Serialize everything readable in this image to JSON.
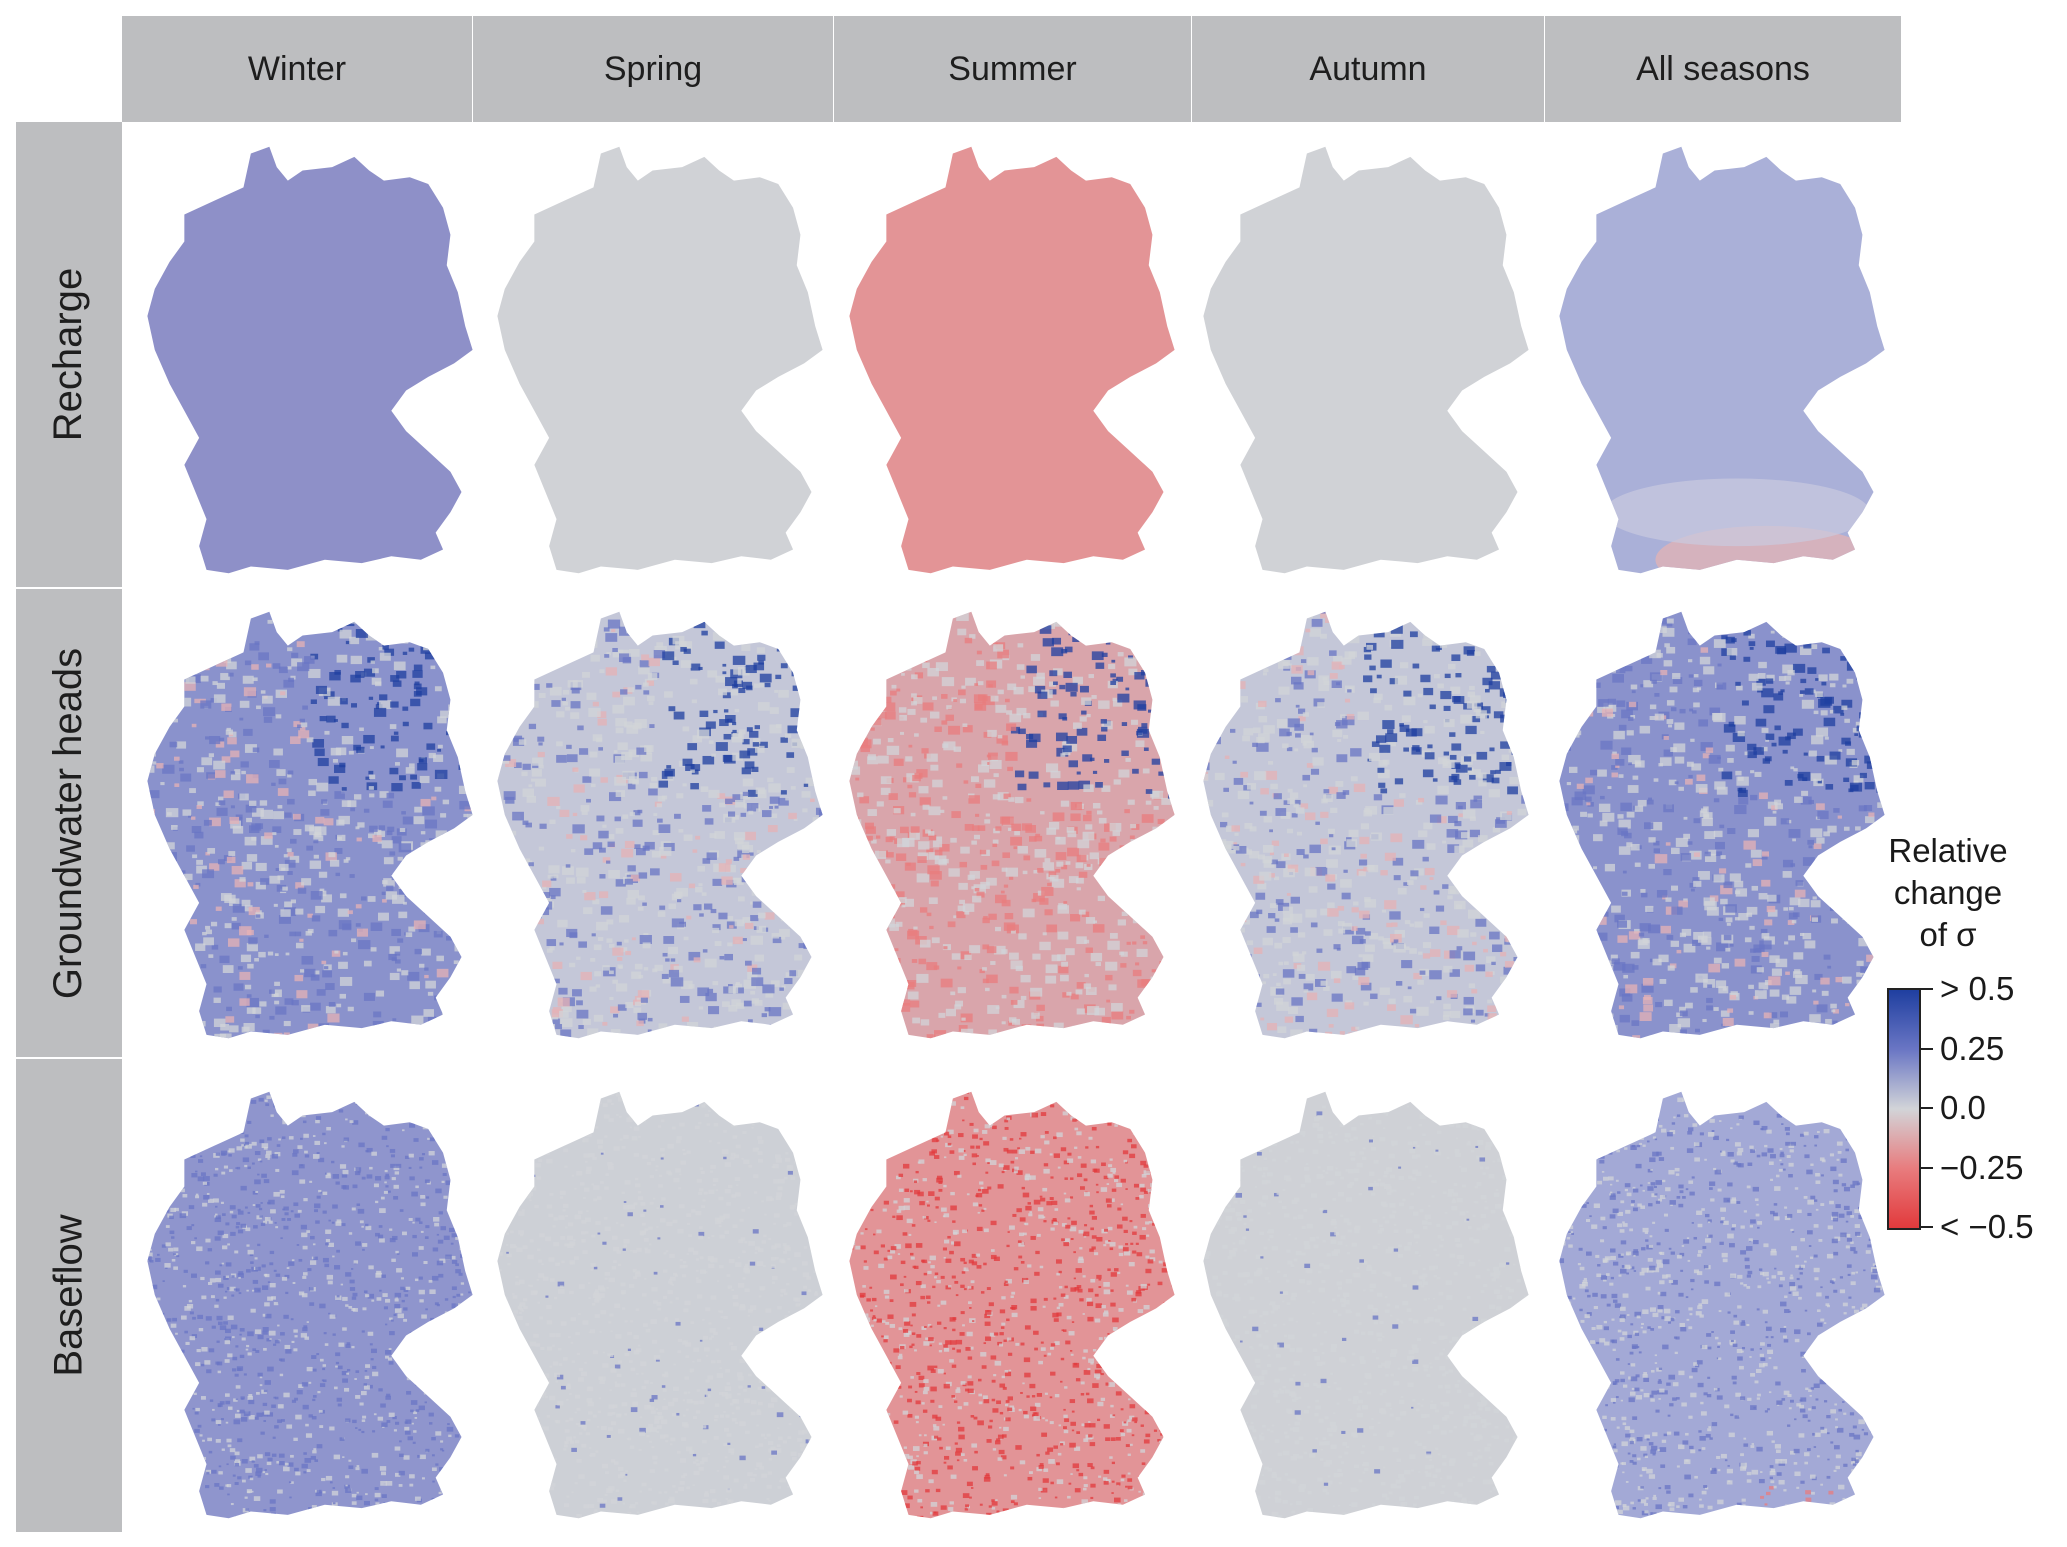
{
  "columns": [
    {
      "label": "Winter"
    },
    {
      "label": "Spring"
    },
    {
      "label": "Summer"
    },
    {
      "label": "Autumn"
    },
    {
      "label": "All seasons"
    }
  ],
  "rows": [
    {
      "label": "Recharge"
    },
    {
      "label": "Groundwater heads"
    },
    {
      "label": "Baseflow"
    }
  ],
  "legend": {
    "title_lines": [
      "Relative",
      "change",
      "of σ"
    ],
    "ticks": [
      "> 0.5",
      "0.25",
      "0.0",
      "−0.25",
      "< −0.5"
    ],
    "colors": {
      "high": "#1f3fa0",
      "mid_high": "#6a76c4",
      "neutral": "#d2d4d8",
      "mid_low": "#e87c7e",
      "low": "#e23a3c"
    }
  },
  "panels": [
    {
      "row": "Recharge",
      "column": "Winter",
      "fill": "#8e90c8",
      "pattern": "uniform"
    },
    {
      "row": "Recharge",
      "column": "Spring",
      "fill": "#d0d2d6",
      "pattern": "uniform"
    },
    {
      "row": "Recharge",
      "column": "Summer",
      "fill": "#e39496",
      "pattern": "uniform"
    },
    {
      "row": "Recharge",
      "column": "Autumn",
      "fill": "#d0d2d6",
      "pattern": "uniform"
    },
    {
      "row": "Recharge",
      "column": "All seasons",
      "fill": "#aab0d8",
      "pattern": "smooth-gradient-red-south"
    },
    {
      "row": "Groundwater heads",
      "column": "Winter",
      "fill": "#8a92cc",
      "pattern": "speckled-blue-northeast"
    },
    {
      "row": "Groundwater heads",
      "column": "Spring",
      "fill": "#c4c7d8",
      "pattern": "speckled-blue-northeast"
    },
    {
      "row": "Groundwater heads",
      "column": "Summer",
      "fill": "#d9a5ab",
      "pattern": "speckled-red-blue-northeast"
    },
    {
      "row": "Groundwater heads",
      "column": "Autumn",
      "fill": "#c4c7d8",
      "pattern": "speckled-blue-northeast"
    },
    {
      "row": "Groundwater heads",
      "column": "All seasons",
      "fill": "#8a92cc",
      "pattern": "speckled-blue-northeast"
    },
    {
      "row": "Baseflow",
      "column": "Winter",
      "fill": "#8f95cd",
      "pattern": "noisy-blue"
    },
    {
      "row": "Baseflow",
      "column": "Spring",
      "fill": "#cdd0d6",
      "pattern": "noisy-grey"
    },
    {
      "row": "Baseflow",
      "column": "Summer",
      "fill": "#e29497",
      "pattern": "noisy-red"
    },
    {
      "row": "Baseflow",
      "column": "Autumn",
      "fill": "#cfd1d6",
      "pattern": "noisy-grey"
    },
    {
      "row": "Baseflow",
      "column": "All seasons",
      "fill": "#a3a9d6",
      "pattern": "noisy-blue-red-south"
    }
  ]
}
